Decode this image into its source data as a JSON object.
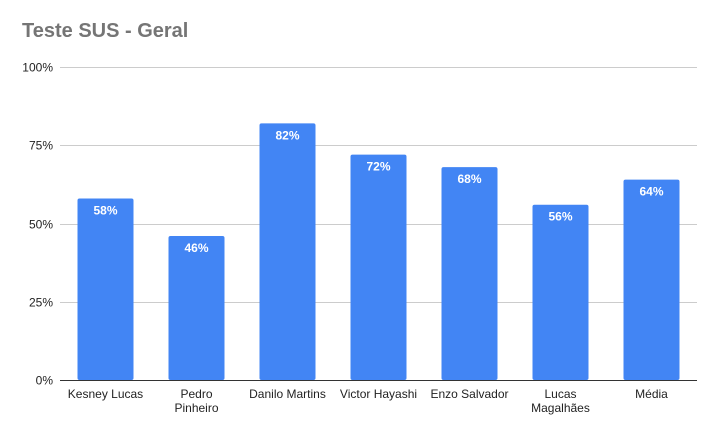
{
  "chart_data": {
    "type": "bar",
    "title": "Teste SUS - Geral",
    "xlabel": "",
    "ylabel": "",
    "ylim": [
      0,
      100
    ],
    "yticks": [
      0,
      25,
      50,
      75,
      100
    ],
    "ytick_labels": [
      "0%",
      "25%",
      "50%",
      "75%",
      "100%"
    ],
    "categories": [
      [
        "Kesney Lucas"
      ],
      [
        "Pedro",
        "Pinheiro"
      ],
      [
        "Danilo Martins"
      ],
      [
        "Victor Hayashi"
      ],
      [
        "Enzo Salvador"
      ],
      [
        "Lucas",
        "Magalhães"
      ],
      [
        "Média"
      ]
    ],
    "values": [
      58,
      46,
      82,
      72,
      68,
      56,
      64
    ],
    "data_labels": [
      "58%",
      "46%",
      "82%",
      "72%",
      "68%",
      "56%",
      "64%"
    ],
    "bar_color": "#4285f4",
    "grid": true,
    "legend": "none"
  }
}
